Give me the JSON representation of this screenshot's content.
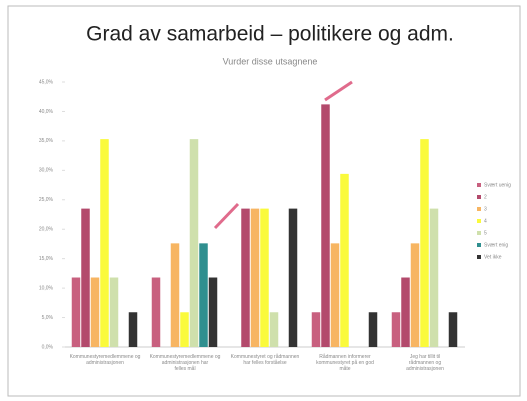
{
  "chart_data": {
    "type": "bar",
    "title": "Grad av samarbeid – politikere og adm.",
    "subtitle": "Vurder disse utsagnene",
    "categories": [
      "Kommunestyremedlemmene og administrasjonen",
      "Kommunestyremedlemmene og administrasjonen har felles mål",
      "Kommunestyret og rådmannen har felles forståelse",
      "Rådmannen informerer kommunestyret på en god måte",
      "Jeg har tillit til rådmannen og administrasjonen"
    ],
    "series": [
      {
        "name": "Svært uenig",
        "color": "#c8607f",
        "values": [
          11.8,
          11.8,
          0,
          5.9,
          5.9
        ]
      },
      {
        "name": "2",
        "color": "#b34a6c",
        "values": [
          23.5,
          0,
          23.5,
          41.2,
          11.8
        ]
      },
      {
        "name": "3",
        "color": "#f7b562",
        "values": [
          11.8,
          17.6,
          23.5,
          17.6,
          17.6
        ]
      },
      {
        "name": "4",
        "color": "#fafa3c",
        "values": [
          35.3,
          5.9,
          23.5,
          29.4,
          35.3
        ]
      },
      {
        "name": "5",
        "color": "#cfe0ac",
        "values": [
          11.8,
          35.3,
          5.9,
          0,
          23.5
        ]
      },
      {
        "name": "Svært enig",
        "color": "#2f8f8f",
        "values": [
          0,
          17.6,
          0,
          0,
          0
        ]
      },
      {
        "name": "Vet ikke",
        "color": "#333333",
        "values": [
          5.9,
          11.8,
          23.5,
          5.9,
          5.9
        ]
      }
    ],
    "ylim": [
      0,
      45
    ],
    "yticks": [
      {
        "value": 0,
        "label": "0,0%"
      },
      {
        "value": 5,
        "label": "5,0%"
      },
      {
        "value": 10,
        "label": "10,0%"
      },
      {
        "value": 15,
        "label": "15,0%"
      },
      {
        "value": 20,
        "label": "20,0%"
      },
      {
        "value": 25,
        "label": "25,0%"
      },
      {
        "value": 30,
        "label": "30,0%"
      },
      {
        "value": 35,
        "label": "35,0%"
      },
      {
        "value": 40,
        "label": "40,0%"
      },
      {
        "value": 45,
        "label": "45,0%"
      }
    ],
    "legend": "right"
  }
}
